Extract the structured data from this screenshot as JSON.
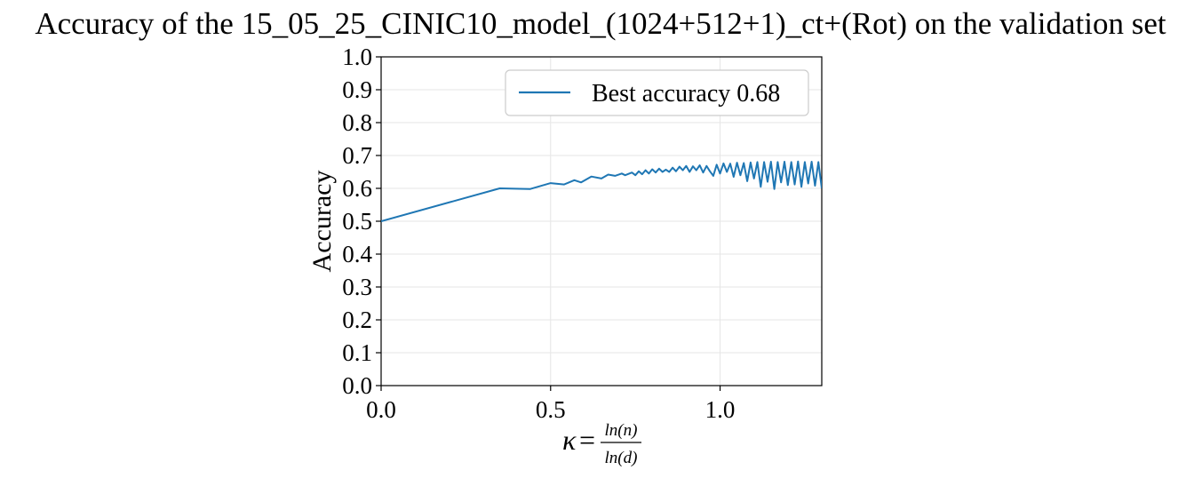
{
  "chart_data": {
    "type": "line",
    "title": "Accuracy of the 15_05_25_CINIC10_model_(1024+512+1)_ct+(Rot) on the validation set",
    "xlabel": {
      "symbol": "κ",
      "equals": "=",
      "numerator": "ln(n)",
      "denominator": "ln(d)"
    },
    "ylabel": "Accuracy",
    "xlim": [
      0,
      1.3
    ],
    "ylim": [
      0,
      1.0
    ],
    "xticks": [
      0.0,
      0.5,
      1.0
    ],
    "xtick_labels": [
      "0.0",
      "0.5",
      "1.0"
    ],
    "yticks": [
      0.0,
      0.1,
      0.2,
      0.3,
      0.4,
      0.5,
      0.6,
      0.7,
      0.8,
      0.9,
      1.0
    ],
    "ytick_labels": [
      "0.0",
      "0.1",
      "0.2",
      "0.3",
      "0.4",
      "0.5",
      "0.6",
      "0.7",
      "0.8",
      "0.9",
      "1.0"
    ],
    "grid": true,
    "legend_position": "top-right",
    "series": [
      {
        "name": "Best accuracy 0.68",
        "color": "#1f77b4",
        "x": [
          0.0,
          0.35,
          0.44,
          0.5,
          0.54,
          0.57,
          0.59,
          0.62,
          0.65,
          0.67,
          0.69,
          0.71,
          0.72,
          0.74,
          0.75,
          0.76,
          0.77,
          0.78,
          0.79,
          0.8,
          0.81,
          0.82,
          0.83,
          0.84,
          0.85,
          0.86,
          0.87,
          0.88,
          0.89,
          0.9,
          0.91,
          0.92,
          0.93,
          0.94,
          0.95,
          0.96,
          0.97,
          0.98,
          0.99,
          1.0,
          1.01,
          1.02,
          1.03,
          1.04,
          1.05,
          1.06,
          1.07,
          1.08,
          1.09,
          1.1,
          1.11,
          1.12,
          1.13,
          1.14,
          1.15,
          1.16,
          1.17,
          1.18,
          1.19,
          1.2,
          1.21,
          1.22,
          1.23,
          1.24,
          1.25,
          1.26,
          1.27,
          1.28,
          1.29,
          1.3
        ],
        "values": [
          0.5,
          0.6,
          0.598,
          0.616,
          0.612,
          0.625,
          0.618,
          0.636,
          0.63,
          0.642,
          0.638,
          0.645,
          0.64,
          0.648,
          0.64,
          0.652,
          0.643,
          0.655,
          0.645,
          0.658,
          0.648,
          0.66,
          0.65,
          0.657,
          0.65,
          0.663,
          0.652,
          0.666,
          0.655,
          0.668,
          0.65,
          0.667,
          0.655,
          0.67,
          0.648,
          0.668,
          0.652,
          0.638,
          0.672,
          0.645,
          0.676,
          0.65,
          0.675,
          0.635,
          0.678,
          0.64,
          0.677,
          0.622,
          0.679,
          0.63,
          0.68,
          0.605,
          0.68,
          0.62,
          0.681,
          0.598,
          0.68,
          0.618,
          0.681,
          0.61,
          0.68,
          0.612,
          0.682,
          0.605,
          0.68,
          0.615,
          0.681,
          0.608,
          0.68,
          0.6
        ]
      }
    ]
  }
}
